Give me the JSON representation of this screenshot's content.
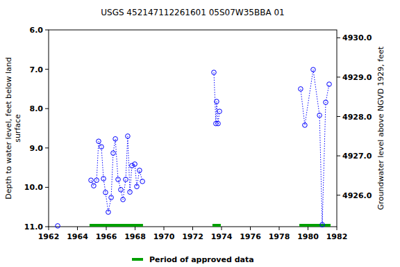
{
  "chart_data": {
    "type": "line",
    "title": "USGS 452147112261601 05S07W35BBA 01",
    "ylabel": "Depth to water level, feet below land surface",
    "y2label": "Groundwater level above NGVD 1929, feet",
    "xlim": [
      1962,
      1982
    ],
    "xticks": [
      1962,
      1964,
      1966,
      1968,
      1970,
      1972,
      1974,
      1976,
      1978,
      1980,
      1982
    ],
    "ylim": [
      6,
      11
    ],
    "yticks": [
      {
        "value": 6,
        "label": "6.0"
      },
      {
        "value": 7,
        "label": "7.0"
      },
      {
        "value": 8,
        "label": "8.0"
      },
      {
        "value": 9,
        "label": "9.0"
      },
      {
        "value": 10,
        "label": "10.0"
      },
      {
        "value": 11,
        "label": "11.0"
      }
    ],
    "y2lim": [
      4930.2,
      4925.2
    ],
    "y2ticks": [
      {
        "value": 4926,
        "label": "4926.0"
      },
      {
        "value": 4927,
        "label": "4927.0"
      },
      {
        "value": 4928,
        "label": "4928.0"
      },
      {
        "value": 4929,
        "label": "4929.0"
      },
      {
        "value": 4930,
        "label": "4930.0"
      }
    ],
    "grid": false,
    "series": [
      {
        "color": "#0000ff",
        "marker": "circle",
        "line_style": "dotted",
        "x": [
          1962.63,
          null,
          1964.94,
          1965.13,
          1965.33,
          1965.47,
          1965.66,
          1965.81,
          1965.95,
          1966.14,
          1966.34,
          1966.48,
          1966.63,
          1966.82,
          1967.01,
          1967.16,
          1967.35,
          1967.49,
          1967.64,
          1967.78,
          1967.98,
          1968.12,
          1968.31,
          1968.51,
          null,
          1973.47,
          1973.61,
          1973.66,
          1973.76,
          1973.86,
          null,
          1979.49,
          1979.78,
          1980.36,
          1980.8,
          1980.99,
          1981.23,
          1981.47
        ],
        "values": [
          10.98,
          null,
          9.82,
          9.96,
          9.82,
          8.83,
          8.97,
          9.78,
          10.13,
          10.63,
          10.26,
          9.13,
          8.77,
          9.8,
          10.06,
          10.31,
          9.8,
          8.7,
          10.12,
          9.45,
          9.41,
          9.98,
          9.57,
          9.85,
          null,
          7.08,
          8.38,
          7.82,
          8.38,
          8.07,
          null,
          7.5,
          8.42,
          7.01,
          8.17,
          10.95,
          7.84,
          7.38
        ]
      }
    ],
    "periods": {
      "name": "Period of approved data",
      "color": "#00a000",
      "ranges": [
        [
          1964.84,
          1968.55
        ],
        [
          1973.37,
          1973.95
        ],
        [
          1979.4,
          1981.57
        ]
      ]
    },
    "legend": "bottom"
  }
}
